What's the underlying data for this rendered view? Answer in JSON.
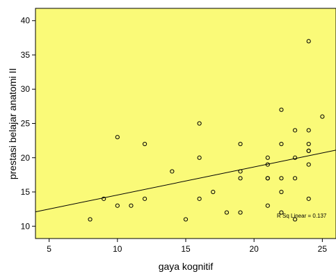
{
  "chart_data": {
    "type": "scatter",
    "xlabel": "gaya kognitif",
    "ylabel": "prestasi belajar anatomi II",
    "xlim": [
      4,
      26
    ],
    "ylim": [
      8.2,
      41.8
    ],
    "x_ticks": [
      5,
      10,
      15,
      20,
      25
    ],
    "y_ticks": [
      10,
      15,
      20,
      25,
      30,
      35,
      40
    ],
    "background_color": "#fafa78",
    "marker_color": "#000000",
    "grid": false,
    "points": [
      [
        8,
        11
      ],
      [
        9,
        14
      ],
      [
        10,
        13
      ],
      [
        10,
        23
      ],
      [
        11,
        13
      ],
      [
        12,
        22
      ],
      [
        12,
        14
      ],
      [
        14,
        18
      ],
      [
        15,
        11
      ],
      [
        16,
        25
      ],
      [
        16,
        20
      ],
      [
        16,
        14
      ],
      [
        17,
        15
      ],
      [
        18,
        12
      ],
      [
        19,
        22
      ],
      [
        19,
        18
      ],
      [
        19,
        17
      ],
      [
        19,
        12
      ],
      [
        21,
        20
      ],
      [
        21,
        19
      ],
      [
        21,
        17
      ],
      [
        21,
        17
      ],
      [
        21,
        13
      ],
      [
        22,
        27
      ],
      [
        22,
        22
      ],
      [
        22,
        17
      ],
      [
        22,
        15
      ],
      [
        22,
        12
      ],
      [
        23,
        24
      ],
      [
        23,
        20
      ],
      [
        23,
        17
      ],
      [
        23,
        11
      ],
      [
        24,
        37
      ],
      [
        24,
        24
      ],
      [
        24,
        22
      ],
      [
        24,
        21
      ],
      [
        24,
        21
      ],
      [
        24,
        19
      ],
      [
        24,
        14
      ],
      [
        25,
        26
      ]
    ],
    "fit_line": {
      "x": [
        4,
        26
      ],
      "y": [
        12.1,
        21.1
      ],
      "label": "R Sq Linear = 0.137"
    }
  }
}
